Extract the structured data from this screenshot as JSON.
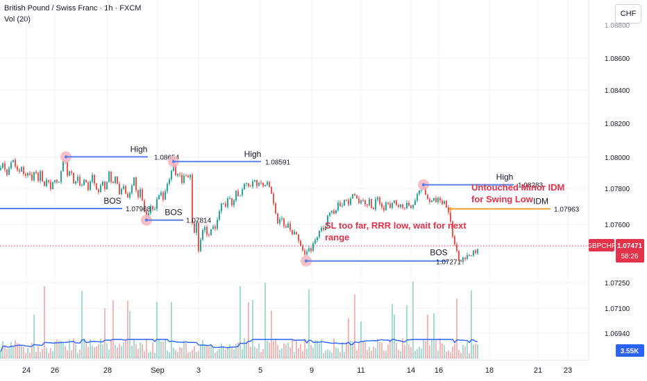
{
  "header": {
    "title": "British Pound / Swiss Franc · 1h · FXCM",
    "volume_label": "Vol (20)",
    "currency_button": "CHF"
  },
  "colors": {
    "up": "#26a69a",
    "down": "#ef5350",
    "level_line": "#5b7fe8",
    "idm_line": "#f0a030",
    "annotation_text": "#e3324a",
    "swing_marker": "#f6b6c0",
    "price_tag": "#e3324a",
    "volume_ma": "#2962ff",
    "volume_tag": "#2962ff"
  },
  "price_tag": {
    "symbol": "GBPCHF",
    "price": "1.07471",
    "countdown": "58:26"
  },
  "volume_tag": "3.55K",
  "chart_data": {
    "type": "candlestick",
    "x_tick_labels": [
      "24",
      "26",
      "28",
      "Sep",
      "3",
      "5",
      "9",
      "11",
      "14",
      "16",
      "18",
      "21",
      "23"
    ],
    "y_tick_labels": [
      "1.08600",
      "1.08400",
      "1.08200",
      "1.08000",
      "1.07800",
      "1.07600",
      "1.07250",
      "1.07100",
      "1.06940"
    ],
    "price_range_visible": [
      1.0694,
      1.0875
    ],
    "current_price": 1.07471,
    "swing_path": [
      [
        0,
        1.0848
      ],
      [
        5,
        1.0858
      ],
      [
        9,
        1.0838
      ],
      [
        13,
        1.0852
      ],
      [
        18,
        1.0862
      ],
      [
        22,
        1.0854
      ],
      [
        27,
        1.0842
      ],
      [
        31,
        1.0851
      ],
      [
        36,
        1.0838
      ],
      [
        41,
        1.0847
      ],
      [
        46,
        1.0835
      ],
      [
        50,
        1.0849
      ],
      [
        55,
        1.0833
      ],
      [
        58,
        1.0846
      ],
      [
        63,
        1.0823
      ],
      [
        68,
        1.0836
      ],
      [
        73,
        1.0822
      ],
      [
        78,
        1.0838
      ],
      [
        84,
        1.0826
      ],
      [
        89,
        1.0853
      ],
      [
        93,
        1.0865
      ],
      [
        97,
        1.0842
      ],
      [
        102,
        1.0847
      ],
      [
        107,
        1.0828
      ],
      [
        112,
        1.0838
      ],
      [
        117,
        1.0823
      ],
      [
        122,
        1.0839
      ],
      [
        127,
        1.0822
      ],
      [
        133,
        1.0842
      ],
      [
        138,
        1.0825
      ],
      [
        143,
        1.0818
      ],
      [
        147,
        1.0834
      ],
      [
        152,
        1.0822
      ],
      [
        157,
        1.0845
      ],
      [
        162,
        1.0827
      ],
      [
        167,
        1.0842
      ],
      [
        172,
        1.0816
      ],
      [
        178,
        1.0828
      ],
      [
        183,
        1.0808
      ],
      [
        188,
        1.0821
      ],
      [
        193,
        1.0838
      ],
      [
        198,
        1.0811
      ],
      [
        203,
        1.0823
      ],
      [
        207,
        1.0795
      ],
      [
        212,
        1.0783
      ],
      [
        217,
        1.0799
      ],
      [
        222,
        1.0791
      ],
      [
        226,
        1.0808
      ],
      [
        231,
        1.0818
      ],
      [
        236,
        1.0808
      ],
      [
        240,
        1.0829
      ],
      [
        245,
        1.0838
      ],
      [
        250,
        1.0857
      ],
      [
        254,
        1.0836
      ],
      [
        258,
        1.0845
      ],
      [
        262,
        1.0832
      ],
      [
        266,
        1.0843
      ],
      [
        270,
        1.0838
      ],
      [
        274,
        1.0842
      ],
      [
        276,
        1.0786
      ],
      [
        279,
        1.076
      ],
      [
        283,
        1.0778
      ],
      [
        286,
        1.0741
      ],
      [
        290,
        1.0762
      ],
      [
        295,
        1.0773
      ],
      [
        300,
        1.0757
      ],
      [
        305,
        1.0773
      ],
      [
        310,
        1.0771
      ],
      [
        315,
        1.0788
      ],
      [
        320,
        1.0808
      ],
      [
        325,
        1.0799
      ],
      [
        330,
        1.0814
      ],
      [
        335,
        1.08
      ],
      [
        340,
        1.0819
      ],
      [
        345,
        1.081
      ],
      [
        350,
        1.0826
      ],
      [
        355,
        1.0831
      ],
      [
        360,
        1.0825
      ],
      [
        365,
        1.0837
      ],
      [
        370,
        1.0828
      ],
      [
        375,
        1.0834
      ],
      [
        380,
        1.0825
      ],
      [
        385,
        1.0833
      ],
      [
        390,
        1.0822
      ],
      [
        395,
        1.0798
      ],
      [
        400,
        1.0778
      ],
      [
        405,
        1.0788
      ],
      [
        410,
        1.077
      ],
      [
        415,
        1.0777
      ],
      [
        420,
        1.076
      ],
      [
        425,
        1.0768
      ],
      [
        430,
        1.0752
      ],
      [
        435,
        1.0742
      ],
      [
        439,
        1.0734
      ],
      [
        444,
        1.0746
      ],
      [
        448,
        1.074
      ],
      [
        452,
        1.0752
      ],
      [
        457,
        1.0758
      ],
      [
        462,
        1.0773
      ],
      [
        467,
        1.0768
      ],
      [
        472,
        1.0786
      ],
      [
        477,
        1.0795
      ],
      [
        482,
        1.079
      ],
      [
        487,
        1.0803
      ],
      [
        492,
        1.0796
      ],
      [
        497,
        1.0812
      ],
      [
        502,
        1.0803
      ],
      [
        507,
        1.0818
      ],
      [
        512,
        1.0812
      ],
      [
        517,
        1.0804
      ],
      [
        522,
        1.0811
      ],
      [
        527,
        1.0799
      ],
      [
        532,
        1.0808
      ],
      [
        537,
        1.0792
      ],
      [
        542,
        1.0814
      ],
      [
        547,
        1.0804
      ],
      [
        552,
        1.0792
      ],
      [
        557,
        1.0806
      ],
      [
        562,
        1.0799
      ],
      [
        567,
        1.0808
      ],
      [
        572,
        1.0797
      ],
      [
        577,
        1.0803
      ],
      [
        582,
        1.0796
      ],
      [
        587,
        1.0806
      ],
      [
        592,
        1.0796
      ],
      [
        597,
        1.0804
      ],
      [
        601,
        1.0815
      ],
      [
        605,
        1.0822
      ],
      [
        609,
        1.0827
      ],
      [
        612,
        1.0817
      ],
      [
        616,
        1.0809
      ],
      [
        620,
        1.0802
      ],
      [
        624,
        1.081
      ],
      [
        628,
        1.0806
      ],
      [
        632,
        1.0812
      ],
      [
        636,
        1.0802
      ],
      [
        640,
        1.0806
      ],
      [
        644,
        1.0795
      ],
      [
        648,
        1.0786
      ],
      [
        651,
        1.0764
      ],
      [
        654,
        1.075
      ],
      [
        657,
        1.0745
      ],
      [
        660,
        1.0732
      ],
      [
        663,
        1.0724
      ],
      [
        666,
        1.0734
      ],
      [
        670,
        1.0728
      ],
      [
        674,
        1.0738
      ],
      [
        678,
        1.0733
      ],
      [
        682,
        1.0741
      ],
      [
        686,
        1.0738
      ],
      [
        690,
        1.0747
      ]
    ],
    "levels": [
      {
        "kind": "swing",
        "label": "High",
        "value_label": "1.08654",
        "price": 1.08654
      },
      {
        "kind": "swing",
        "label": "High",
        "value_label": "1.08591",
        "price": 1.08591
      },
      {
        "kind": "swing",
        "label": "High",
        "value_label": "1.08283",
        "price": 1.08283
      },
      {
        "kind": "bos",
        "label": "BOS",
        "value_label": "1.07968",
        "price": 1.07968
      },
      {
        "kind": "bos",
        "label": "BOS",
        "value_label": "1.07814",
        "price": 1.07814
      },
      {
        "kind": "idm",
        "label": "IDM",
        "value_label": "1.07963",
        "price": 1.07963
      },
      {
        "kind": "bos",
        "label": "BOS",
        "value_label": "1.07271",
        "price": 1.07271
      }
    ],
    "annotations": [
      {
        "lines": [
          "SL too far, RRR low, wait for next",
          "range"
        ]
      },
      {
        "lines": [
          "Untouched Minor IDM",
          "for Swing Low"
        ]
      }
    ]
  }
}
